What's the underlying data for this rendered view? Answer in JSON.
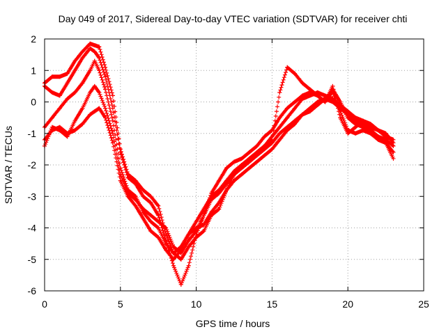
{
  "chart_data": {
    "type": "scatter",
    "title": "Day 049 of 2017, Sidereal Day-to-day VTEC variation (SDTVAR) for receiver chti",
    "xlabel": "GPS time / hours",
    "ylabel": "SDTVAR / TECUs",
    "xlim": [
      0,
      25
    ],
    "ylim": [
      -6,
      2
    ],
    "xticks": [
      "0",
      "5",
      "10",
      "15",
      "20",
      "25"
    ],
    "yticks": [
      "-6",
      "-5",
      "-4",
      "-3",
      "-2",
      "-1",
      "0",
      "1",
      "2"
    ],
    "grid": true,
    "legend": "none",
    "marker": "+",
    "color": "#ff0000",
    "series": [
      {
        "x": [
          0,
          0.5,
          1,
          1.5,
          2,
          2.5,
          3,
          3.3,
          3.6,
          4,
          4.5,
          5,
          5.5,
          6,
          6.5,
          7,
          7.5,
          8,
          8.5,
          9,
          9.5,
          10,
          10.5,
          11,
          11.5,
          12,
          12.5,
          13,
          13.5,
          14,
          14.5,
          15,
          15.5,
          16,
          16.5,
          17,
          17.5,
          18,
          18.5,
          19,
          19.5,
          20,
          20.5,
          21,
          21.5,
          22,
          22.5,
          23
        ],
        "y": [
          0.6,
          0.8,
          0.8,
          0.9,
          1.3,
          1.6,
          1.85,
          1.8,
          1.75,
          1.1,
          0.2,
          -1.5,
          -2.3,
          -2.5,
          -2.8,
          -3.0,
          -3.3,
          -4.2,
          -4.8,
          -5.0,
          -4.6,
          -4.3,
          -4.1,
          -3.6,
          -3.4,
          -2.8,
          -2.3,
          -2.0,
          -1.9,
          -1.6,
          -1.4,
          -1.1,
          -0.8,
          -0.5,
          -0.2,
          0.1,
          0.2,
          0.3,
          0.2,
          0.1,
          -0.1,
          -0.3,
          -0.5,
          -0.6,
          -0.7,
          -0.9,
          -1.0,
          -1.3
        ]
      },
      {
        "x": [
          0,
          0.5,
          1,
          1.5,
          2,
          2.5,
          3,
          3.3,
          3.6,
          4,
          4.5,
          5,
          5.5,
          6,
          6.5,
          7,
          7.5,
          8,
          8.5,
          9,
          9.5,
          10,
          10.5,
          11,
          11.5,
          12,
          12.5,
          13,
          13.5,
          14,
          14.5,
          15,
          15.5,
          16,
          16.5,
          17,
          17.5,
          18,
          18.5,
          19,
          19.5,
          20,
          20.5,
          21,
          21.5,
          22,
          22.5,
          23
        ],
        "y": [
          0.5,
          0.3,
          0.2,
          0.6,
          1.0,
          1.4,
          1.7,
          1.6,
          1.4,
          0.8,
          -0.2,
          -1.6,
          -2.4,
          -2.6,
          -3.0,
          -3.2,
          -3.6,
          -4.4,
          -5.2,
          -5.8,
          -5.2,
          -4.2,
          -3.6,
          -2.9,
          -2.5,
          -2.1,
          -1.9,
          -1.8,
          -1.6,
          -1.4,
          -1.1,
          -0.9,
          -0.5,
          -0.2,
          0.0,
          0.2,
          0.3,
          0.2,
          0.0,
          0.4,
          0.0,
          -0.5,
          -0.7,
          -0.8,
          -0.9,
          -1.1,
          -1.2,
          -1.4
        ]
      },
      {
        "x": [
          0,
          0.5,
          1,
          1.5,
          2,
          2.5,
          3,
          3.3,
          3.6,
          4,
          4.5,
          5,
          5.5,
          6,
          6.5,
          7,
          7.5,
          8,
          8.5,
          9,
          9.5,
          10,
          10.5,
          11,
          11.5,
          12,
          12.5,
          13,
          13.5,
          14,
          14.5,
          15,
          15.5,
          16,
          16.5,
          17,
          17.5,
          18,
          18.5,
          19,
          19.5,
          20,
          20.5,
          21,
          21.5,
          22,
          22.5,
          23
        ],
        "y": [
          -0.8,
          -0.5,
          -0.2,
          0.1,
          0.3,
          0.6,
          1.0,
          1.3,
          1.0,
          0.4,
          -0.6,
          -2.1,
          -2.8,
          -3.0,
          -3.5,
          -3.8,
          -4.0,
          -4.5,
          -4.8,
          -4.6,
          -4.2,
          -4.0,
          -3.9,
          -3.5,
          -3.2,
          -2.8,
          -2.5,
          -2.3,
          -2.1,
          -1.9,
          -1.7,
          -1.5,
          -1.2,
          -0.9,
          -0.7,
          -0.4,
          -0.3,
          -0.1,
          0.1,
          0.0,
          -0.2,
          -0.4,
          -0.6,
          -0.7,
          -0.8,
          -0.9,
          -1.1,
          -1.2
        ]
      },
      {
        "x": [
          0,
          0.5,
          1,
          1.5,
          2,
          2.5,
          3,
          3.3,
          3.6,
          4,
          4.5,
          5,
          5.5,
          6,
          6.5,
          7,
          7.5,
          8,
          8.5,
          9,
          9.5,
          10,
          10.5,
          11,
          11.5,
          12,
          12.5,
          13,
          13.5,
          14,
          14.5,
          15,
          15.5,
          16,
          16.5,
          17,
          17.5,
          18,
          18.5,
          19,
          19.5,
          20,
          20.5,
          21,
          21.5,
          22,
          22.5,
          23
        ],
        "y": [
          -1.4,
          -0.8,
          -0.9,
          -1.1,
          -0.6,
          -0.2,
          0.3,
          0.5,
          0.3,
          -0.2,
          -1.0,
          -2.3,
          -2.9,
          -3.1,
          -3.4,
          -3.6,
          -3.8,
          -4.0,
          -4.6,
          -4.8,
          -4.4,
          -4.1,
          -3.6,
          -3.1,
          -2.9,
          -2.6,
          -2.3,
          -2.1,
          -1.9,
          -1.7,
          -1.5,
          -1.3,
          -1.0,
          -0.8,
          -0.6,
          -0.4,
          -0.2,
          0.0,
          0.1,
          0.3,
          -0.3,
          -0.9,
          -1.0,
          -0.9,
          -1.0,
          -1.2,
          -1.3,
          -1.6
        ]
      },
      {
        "x": [
          0,
          0.5,
          1,
          1.5,
          2,
          2.5,
          3,
          3.3,
          3.6,
          4,
          4.5,
          5,
          5.5,
          6,
          6.5,
          7,
          7.5,
          8,
          8.5,
          9,
          9.5,
          10,
          10.5,
          11,
          11.5,
          12,
          12.5,
          13,
          13.5,
          14,
          14.5,
          15,
          15.5,
          16,
          16.5,
          17,
          17.5,
          18,
          18.5,
          19,
          19.5,
          20,
          20.5,
          21,
          21.5,
          22,
          22.5,
          23
        ],
        "y": [
          -1.2,
          -0.9,
          -0.8,
          -1.0,
          -0.9,
          -0.7,
          -0.4,
          -0.3,
          -0.2,
          -0.5,
          -1.3,
          -2.5,
          -3.0,
          -3.3,
          -3.7,
          -4.1,
          -4.3,
          -4.7,
          -5.0,
          -4.7,
          -4.2,
          -3.8,
          -3.4,
          -3.0,
          -2.8,
          -2.5,
          -2.2,
          -2.0,
          -1.8,
          -1.6,
          -1.4,
          -1.2,
          0.3,
          1.1,
          0.9,
          0.6,
          0.4,
          0.2,
          0.0,
          0.5,
          -0.5,
          -1.0,
          -0.8,
          -0.6,
          -0.9,
          -1.1,
          -1.3,
          -1.8
        ]
      }
    ]
  }
}
